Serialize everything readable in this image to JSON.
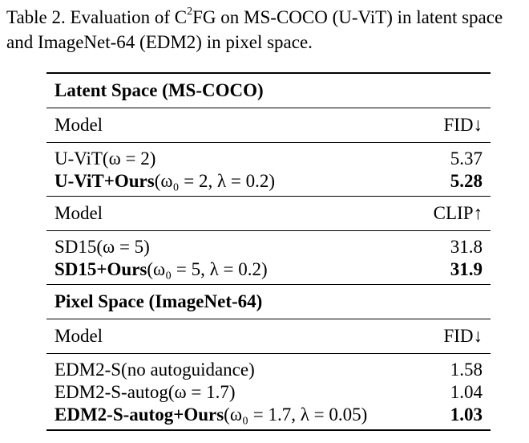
{
  "caption": {
    "prefix": "Table 2. Evaluation of C",
    "superscript": "2",
    "suffix": "FG on MS-COCO (U-ViT) in latent space and ImageNet-64 (EDM2) in pixel space."
  },
  "table": {
    "sections": [
      {
        "title": "Latent Space (MS-COCO)",
        "blocks": [
          {
            "header": {
              "model": "Model",
              "metric": "FID↓"
            },
            "rows": [
              {
                "model": "U-ViT(ω = 2)",
                "value": "5.37",
                "bold": false
              },
              {
                "model_bold": "U-ViT+Ours",
                "model_rest": "(ω₀ = 2, λ = 0.2)",
                "value": "5.28",
                "bold": true
              }
            ]
          },
          {
            "header": {
              "model": "Model",
              "metric": "CLIP↑"
            },
            "rows": [
              {
                "model": "SD15(ω = 5)",
                "value": "31.8",
                "bold": false
              },
              {
                "model_bold": "SD15+Ours",
                "model_rest": "(ω₀ = 5, λ = 0.2)",
                "value": "31.9",
                "bold": true
              }
            ]
          }
        ]
      },
      {
        "title": "Pixel Space (ImageNet-64)",
        "blocks": [
          {
            "header": {
              "model": "Model",
              "metric": "FID↓"
            },
            "rows": [
              {
                "model": "EDM2-S(no autoguidance)",
                "value": "1.58",
                "bold": false
              },
              {
                "model": "EDM2-S-autog(ω = 1.7)",
                "value": "1.04",
                "bold": false
              },
              {
                "model_bold": "EDM2-S-autog+Ours",
                "model_rest": "(ω₀ = 1.7, λ = 0.05)",
                "value": "1.03",
                "bold": true
              }
            ]
          }
        ]
      }
    ]
  }
}
